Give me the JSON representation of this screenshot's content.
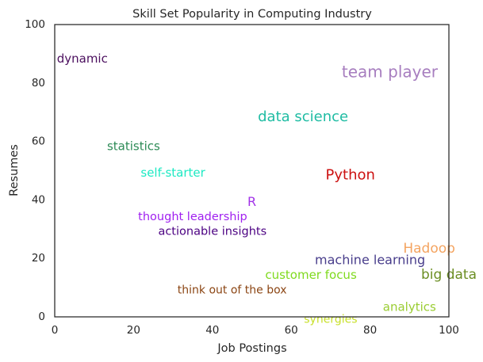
{
  "chart_data": {
    "type": "scatter",
    "title": "Skill Set Popularity in Computing Industry",
    "xlabel": "Job Postings",
    "ylabel": "Resumes",
    "xlim": [
      0,
      100
    ],
    "ylim": [
      0,
      100
    ],
    "xticks": [
      0,
      20,
      40,
      60,
      80,
      100
    ],
    "yticks": [
      0,
      20,
      40,
      60,
      80,
      100
    ],
    "grid": false,
    "points": [
      {
        "label": "dynamic",
        "x": 7,
        "y": 87,
        "color": "#4b0f5e",
        "size": 15
      },
      {
        "label": "team player",
        "x": 85,
        "y": 82,
        "color": "#a77ebf",
        "size": 20
      },
      {
        "label": "data science",
        "x": 63,
        "y": 67,
        "color": "#1fbca3",
        "size": 18
      },
      {
        "label": "statistics",
        "x": 20,
        "y": 57,
        "color": "#2e8b57",
        "size": 15
      },
      {
        "label": "self-starter",
        "x": 30,
        "y": 48,
        "color": "#1de9c3",
        "size": 15
      },
      {
        "label": "Python",
        "x": 75,
        "y": 47,
        "color": "#cc1111",
        "size": 18
      },
      {
        "label": "R",
        "x": 50,
        "y": 38,
        "color": "#a233e8",
        "size": 16
      },
      {
        "label": "thought leadership",
        "x": 35,
        "y": 33,
        "color": "#a020f0",
        "size": 14.5
      },
      {
        "label": "actionable insights",
        "x": 40,
        "y": 28,
        "color": "#4b0082",
        "size": 14.5
      },
      {
        "label": "Hadoop",
        "x": 95,
        "y": 22,
        "color": "#f4a460",
        "size": 17
      },
      {
        "label": "machine learning",
        "x": 80,
        "y": 18,
        "color": "#483d8b",
        "size": 16
      },
      {
        "label": "big data",
        "x": 100,
        "y": 13,
        "color": "#6b8e23",
        "size": 17
      },
      {
        "label": "customer focus",
        "x": 65,
        "y": 13,
        "color": "#7fda1e",
        "size": 15
      },
      {
        "label": "think out of the box",
        "x": 45,
        "y": 8,
        "color": "#8b4513",
        "size": 14
      },
      {
        "label": "analytics",
        "x": 90,
        "y": 2,
        "color": "#9acd32",
        "size": 15
      },
      {
        "label": "synergies",
        "x": 70,
        "y": -2,
        "color": "#c8e02a",
        "size": 14
      }
    ]
  }
}
